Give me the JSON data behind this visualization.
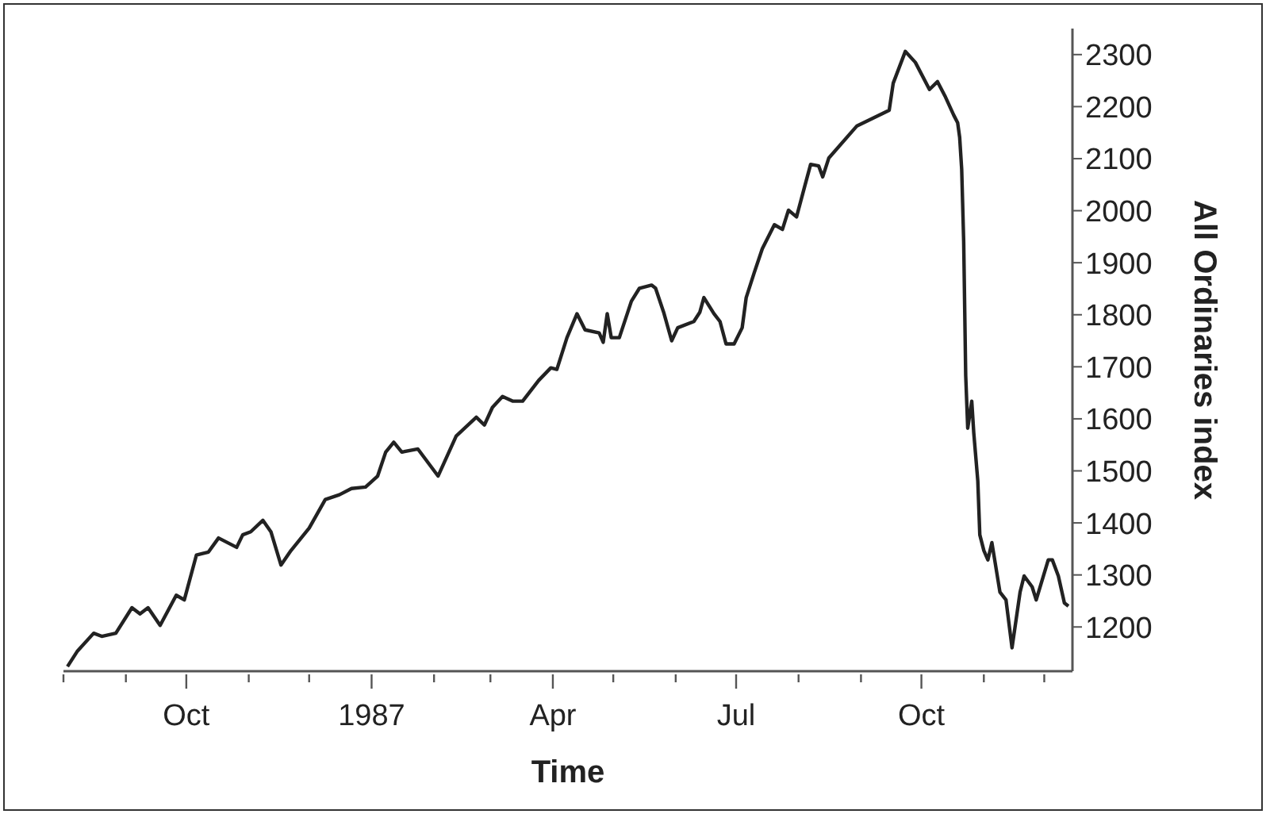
{
  "chart_data": {
    "type": "line",
    "xlabel": "Time",
    "ylabel": "All Ordinaries index",
    "color": "#222222",
    "marker": "none",
    "x": [
      "1986-08-03",
      "1986-08-08",
      "1986-08-16",
      "1986-08-20",
      "1986-08-27",
      "1986-09-04",
      "1986-09-08",
      "1986-09-12",
      "1986-09-18",
      "1986-09-26",
      "1986-09-30",
      "1986-10-06",
      "1986-10-12",
      "1986-10-17",
      "1986-10-26",
      "1986-10-29",
      "1986-11-02",
      "1986-11-08",
      "1986-11-12",
      "1986-11-17",
      "1986-11-22",
      "1986-12-01",
      "1986-12-09",
      "1986-12-16",
      "1986-12-22",
      "1986-12-29",
      "1987-01-04",
      "1987-01-08",
      "1987-01-12",
      "1987-01-16",
      "1987-01-24",
      "1987-02-03",
      "1987-02-12",
      "1987-02-22",
      "1987-02-26",
      "1987-03-02",
      "1987-03-07",
      "1987-03-12",
      "1987-03-17",
      "1987-03-25",
      "1987-03-31",
      "1987-04-03",
      "1987-04-08",
      "1987-04-13",
      "1987-04-17",
      "1987-04-24",
      "1987-04-26",
      "1987-04-28",
      "1987-04-30",
      "1987-05-04",
      "1987-05-10",
      "1987-05-14",
      "1987-05-20",
      "1987-05-22",
      "1987-05-26",
      "1987-05-30",
      "1987-06-02",
      "1987-06-10",
      "1987-06-13",
      "1987-06-15",
      "1987-06-20",
      "1987-06-23",
      "1987-06-26",
      "1987-06-30",
      "1987-07-04",
      "1987-07-06",
      "1987-07-10",
      "1987-07-14",
      "1987-07-20",
      "1987-07-24",
      "1987-07-27",
      "1987-07-31",
      "1987-08-04",
      "1987-08-07",
      "1987-08-11",
      "1987-08-13",
      "1987-08-16",
      "1987-08-30",
      "1987-09-15",
      "1987-09-17",
      "1987-09-23",
      "1987-09-28",
      "1987-10-05",
      "1987-10-09",
      "1987-10-13",
      "1987-10-17",
      "1987-10-19",
      "1987-10-20",
      "1987-10-21",
      "1987-10-22",
      "1987-10-23",
      "1987-10-24",
      "1987-10-26",
      "1987-10-27",
      "1987-10-29",
      "1987-10-30",
      "1987-11-01",
      "1987-11-03",
      "1987-11-05",
      "1987-11-09",
      "1987-11-12",
      "1987-11-15",
      "1987-11-19",
      "1987-11-21",
      "1987-11-25",
      "1987-11-27",
      "1987-12-03",
      "1987-12-05",
      "1987-12-08",
      "1987-12-11",
      "1987-12-13"
    ],
    "values": [
      1124,
      1154,
      1188,
      1182,
      1188,
      1237,
      1225,
      1237,
      1203,
      1261,
      1252,
      1338,
      1344,
      1371,
      1353,
      1377,
      1383,
      1405,
      1383,
      1319,
      1347,
      1390,
      1445,
      1454,
      1466,
      1469,
      1490,
      1536,
      1555,
      1536,
      1542,
      1490,
      1567,
      1603,
      1588,
      1622,
      1643,
      1634,
      1634,
      1674,
      1698,
      1695,
      1756,
      1802,
      1771,
      1765,
      1747,
      1802,
      1756,
      1756,
      1826,
      1851,
      1857,
      1851,
      1805,
      1750,
      1775,
      1787,
      1805,
      1833,
      1802,
      1787,
      1744,
      1744,
      1775,
      1833,
      1881,
      1927,
      1973,
      1964,
      2001,
      1988,
      2046,
      2089,
      2086,
      2065,
      2101,
      2163,
      2193,
      2245,
      2306,
      2285,
      2233,
      2248,
      2218,
      2184,
      2169,
      2141,
      2080,
      1940,
      1683,
      1582,
      1634,
      1573,
      1481,
      1377,
      1347,
      1329,
      1362,
      1267,
      1252,
      1160,
      1267,
      1298,
      1277,
      1252,
      1329,
      1329,
      1298,
      1246,
      1240
    ],
    "xlim": [
      "1986-08-01",
      "1987-12-15"
    ],
    "xticks": [
      {
        "value": "1986-08-01",
        "label": null
      },
      {
        "value": "1986-09-01",
        "label": null
      },
      {
        "value": "1986-10-01",
        "label": "Oct"
      },
      {
        "value": "1986-11-01",
        "label": null
      },
      {
        "value": "1986-12-01",
        "label": null
      },
      {
        "value": "1987-01-01",
        "label": "1987"
      },
      {
        "value": "1987-02-01",
        "label": null
      },
      {
        "value": "1987-03-01",
        "label": null
      },
      {
        "value": "1987-04-01",
        "label": "Apr"
      },
      {
        "value": "1987-05-01",
        "label": null
      },
      {
        "value": "1987-06-01",
        "label": null
      },
      {
        "value": "1987-07-01",
        "label": "Jul"
      },
      {
        "value": "1987-08-01",
        "label": null
      },
      {
        "value": "1987-09-01",
        "label": null
      },
      {
        "value": "1987-10-01",
        "label": "Oct"
      },
      {
        "value": "1987-11-01",
        "label": null
      },
      {
        "value": "1987-12-01",
        "label": null
      }
    ],
    "ylim": [
      1115,
      2350
    ],
    "yticks": [
      1200,
      1300,
      1400,
      1500,
      1600,
      1700,
      1800,
      1900,
      2000,
      2100,
      2200,
      2300
    ]
  }
}
